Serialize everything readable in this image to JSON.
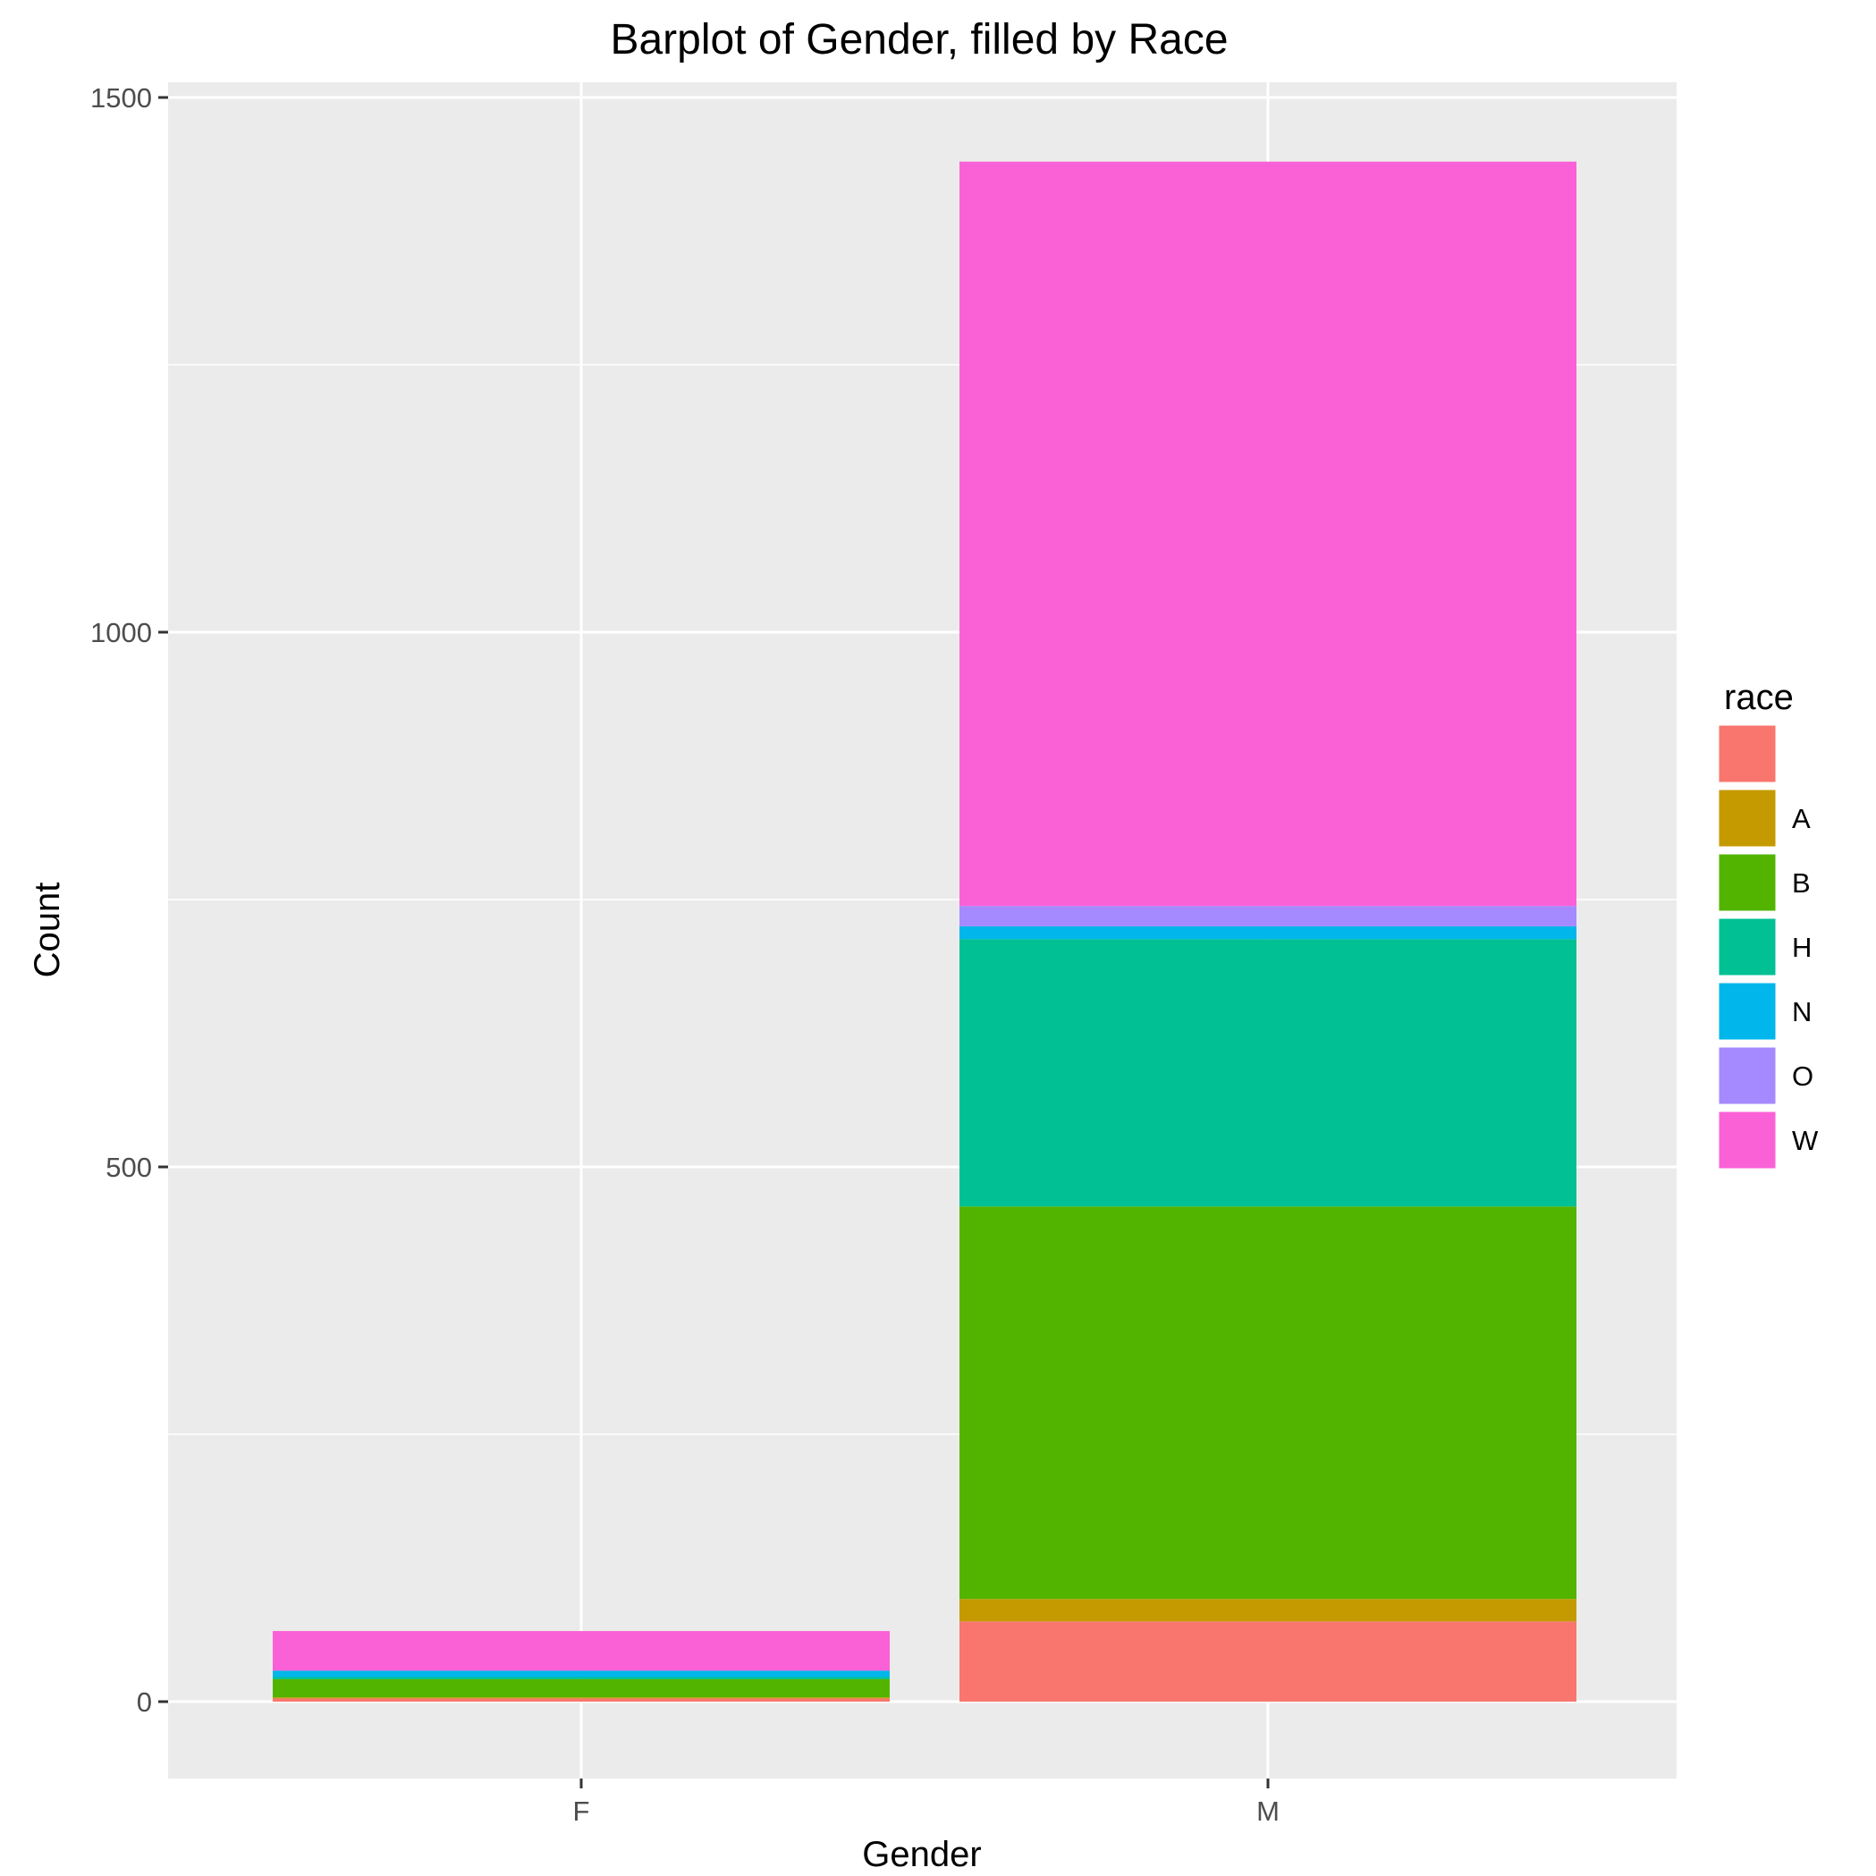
{
  "chart_data": {
    "type": "bar",
    "stacked": true,
    "title": "Barplot of Gender, filled by Race",
    "xlabel": "Gender",
    "ylabel": "Count",
    "categories": [
      "F",
      "M"
    ],
    "ylim": [
      -72,
      1530
    ],
    "yticks": [
      0,
      500,
      1000,
      1500
    ],
    "grid": true,
    "legend": {
      "title": "race",
      "position": "right",
      "entries": [
        "",
        "A",
        "B",
        "H",
        "N",
        "O",
        "W"
      ]
    },
    "series": [
      {
        "name": "",
        "color": "#F8766D",
        "values": [
          3,
          75
        ]
      },
      {
        "name": "A",
        "color": "#C49A00",
        "values": [
          1,
          21
        ]
      },
      {
        "name": "B",
        "color": "#53B400",
        "values": [
          17,
          367
        ]
      },
      {
        "name": "H",
        "color": "#00C094",
        "values": [
          2,
          250
        ]
      },
      {
        "name": "N",
        "color": "#00B6EB",
        "values": [
          6,
          12
        ]
      },
      {
        "name": "O",
        "color": "#A58AFF",
        "values": [
          0,
          19
        ]
      },
      {
        "name": "W",
        "color": "#FB61D7",
        "values": [
          37,
          696
        ]
      }
    ]
  },
  "colors": {
    "panel_background": "#EBEBEB",
    "grid_major": "#FFFFFF",
    "grid_minor": "#FFFFFF",
    "tick_text": "#4D4D4D",
    "tick_mark": "#333333"
  }
}
